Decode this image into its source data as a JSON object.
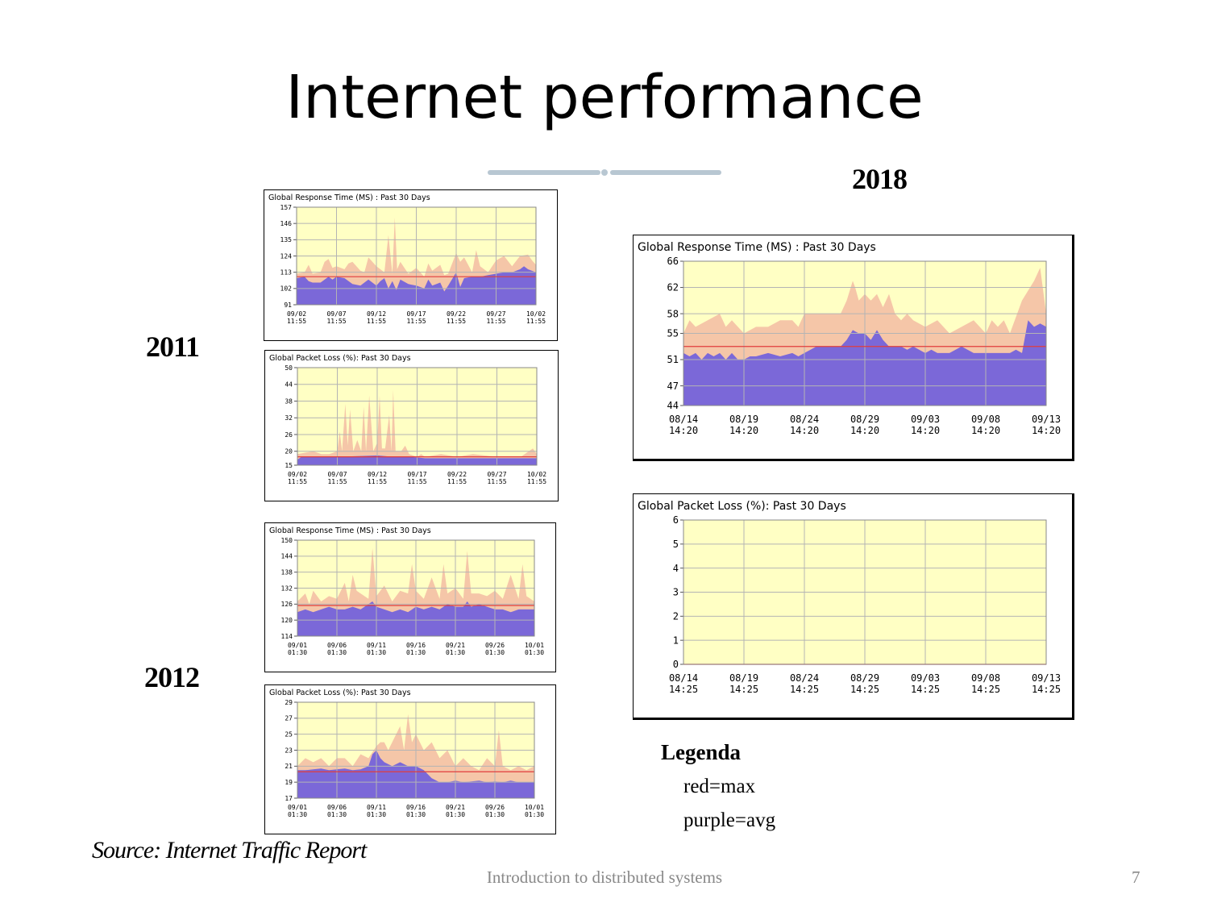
{
  "title": "Internet performance",
  "years": {
    "y2011": "2011",
    "y2012": "2012",
    "y2018": "2018"
  },
  "legend": {
    "title": "Legenda",
    "items": [
      "red=max",
      "purple=avg"
    ]
  },
  "source": "Source: Internet Traffic Report",
  "footer": {
    "text": "Introduction to distributed systems",
    "page": "7"
  },
  "colors": {
    "plot_bg": "#ffffc4",
    "max_fill": "#f5c6a8",
    "avg_fill": "#7b68d8",
    "line": "#e03c3c",
    "grid": "#b4b4b4"
  },
  "chart_data": [
    {
      "id": "rt2011",
      "type": "area",
      "title": "Global Response Time (MS) : Past 30 Days",
      "yticks": [
        91,
        102,
        113,
        124,
        135,
        146,
        157
      ],
      "ylim": [
        91,
        157
      ],
      "xticks": [
        [
          "09/02",
          "11:55"
        ],
        [
          "09/07",
          "11:55"
        ],
        [
          "09/12",
          "11:55"
        ],
        [
          "09/17",
          "11:55"
        ],
        [
          "09/22",
          "11:55"
        ],
        [
          "09/27",
          "11:55"
        ],
        [
          "10/02",
          "11:55"
        ]
      ],
      "xrange": [
        0,
        30
      ],
      "ref_line": 110,
      "series": [
        {
          "role": "max",
          "x": [
            0,
            1,
            1.5,
            2,
            3,
            3.5,
            4,
            4.5,
            5,
            6,
            6.5,
            7,
            8,
            8.5,
            9,
            10,
            11,
            11.5,
            12,
            12.3,
            12.6,
            13,
            14,
            15,
            16,
            16.5,
            17,
            18,
            18.5,
            19,
            20,
            20.5,
            21,
            22,
            22.5,
            23,
            24,
            25,
            26,
            27,
            28,
            29,
            29.5,
            30
          ],
          "values": [
            112,
            113,
            118,
            112,
            113,
            120,
            122,
            116,
            117,
            115,
            119,
            120,
            114,
            113,
            123,
            117,
            113,
            138,
            112,
            150,
            115,
            120,
            112,
            116,
            110,
            119,
            114,
            118,
            111,
            112,
            126,
            120,
            123,
            113,
            128,
            117,
            113,
            121,
            124,
            117,
            124,
            125,
            121,
            118
          ]
        },
        {
          "role": "avg",
          "x": [
            0,
            1,
            1.5,
            2,
            3,
            4,
            4.5,
            5,
            6,
            7,
            8,
            8.5,
            9,
            10,
            10.5,
            11,
            11.5,
            12,
            12.5,
            13,
            14,
            15,
            16,
            16.5,
            17,
            18,
            18.5,
            19,
            20,
            20.5,
            21,
            22,
            23,
            24,
            25,
            26,
            27,
            28,
            28.5,
            29,
            30
          ],
          "values": [
            109,
            110,
            107,
            106,
            106,
            110,
            108,
            110,
            109,
            105,
            104,
            106,
            108,
            104,
            107,
            109,
            102,
            107,
            101,
            108,
            105,
            104,
            102,
            108,
            104,
            106,
            100,
            104,
            113,
            103,
            109,
            110,
            110,
            111,
            112,
            113,
            113,
            115,
            117,
            115,
            113
          ]
        }
      ]
    },
    {
      "id": "pl2011",
      "type": "area",
      "title": "Global Packet Loss (%): Past 30 Days",
      "yticks": [
        15,
        20,
        26,
        32,
        38,
        44,
        50
      ],
      "ylim": [
        15,
        50
      ],
      "xticks": [
        [
          "09/02",
          "11:55"
        ],
        [
          "09/07",
          "11:55"
        ],
        [
          "09/12",
          "11:55"
        ],
        [
          "09/17",
          "11:55"
        ],
        [
          "09/22",
          "11:55"
        ],
        [
          "09/27",
          "11:55"
        ],
        [
          "10/02",
          "11:55"
        ]
      ],
      "xrange": [
        0,
        30
      ],
      "ref_line": 18,
      "series": [
        {
          "role": "max",
          "x": [
            0,
            2,
            3,
            4,
            5,
            5.3,
            5.6,
            6,
            6.3,
            6.6,
            7,
            7.5,
            8,
            8.3,
            8.6,
            9,
            9.5,
            10,
            10.3,
            10.6,
            11,
            11.5,
            11.8,
            12,
            12.3,
            13,
            13.5,
            14,
            15,
            15.5,
            16,
            18,
            20,
            22,
            25,
            28,
            29.5,
            30
          ],
          "values": [
            19,
            20,
            19,
            19,
            20,
            27,
            20,
            37,
            22,
            35,
            20,
            24,
            20,
            36,
            20,
            40,
            20,
            23,
            40,
            21,
            21,
            33,
            20,
            42,
            20,
            20,
            22,
            19,
            18,
            19,
            18,
            19,
            18,
            19,
            18,
            18,
            21,
            19
          ]
        },
        {
          "role": "avg",
          "x": [
            0,
            0.5,
            5,
            10,
            12,
            14,
            16,
            20,
            25,
            30
          ],
          "values": [
            17,
            18,
            18,
            18.5,
            18,
            18,
            17.5,
            17.5,
            17.5,
            17.5
          ]
        }
      ]
    },
    {
      "id": "rt2012",
      "type": "area",
      "title": "Global Response Time (MS) : Past 30 Days",
      "yticks": [
        114,
        120,
        126,
        132,
        138,
        144,
        150
      ],
      "ylim": [
        114,
        150
      ],
      "xticks": [
        [
          "09/01",
          "01:30"
        ],
        [
          "09/06",
          "01:30"
        ],
        [
          "09/11",
          "01:30"
        ],
        [
          "09/16",
          "01:30"
        ],
        [
          "09/21",
          "01:30"
        ],
        [
          "09/26",
          "01:30"
        ],
        [
          "10/01",
          "01:30"
        ]
      ],
      "xrange": [
        0,
        30
      ],
      "ref_line": 125.5,
      "series": [
        {
          "role": "max",
          "x": [
            0,
            1,
            1.5,
            2,
            3,
            4,
            5,
            6,
            6.5,
            7,
            7.5,
            8,
            9,
            9.5,
            10,
            11,
            12,
            13,
            14,
            14.5,
            15,
            16,
            17,
            18,
            18.5,
            19,
            20,
            21,
            21.5,
            22,
            23,
            24,
            25,
            26,
            27,
            28,
            28.5,
            29,
            30
          ],
          "values": [
            127,
            130,
            126,
            131,
            127,
            129,
            128,
            134,
            127,
            137,
            131,
            130,
            128,
            147,
            129,
            133,
            127,
            131,
            130,
            141,
            131,
            128,
            136,
            128,
            141,
            130,
            132,
            128,
            146,
            130,
            130,
            129,
            131,
            128,
            137,
            128,
            141,
            129,
            127
          ]
        },
        {
          "role": "avg",
          "x": [
            0,
            1,
            2,
            3,
            4,
            5,
            6,
            7,
            8,
            9,
            9.5,
            10,
            11,
            12,
            13,
            14,
            15,
            16,
            17,
            18,
            19,
            20,
            21,
            21.5,
            22,
            23,
            24,
            25,
            26,
            27,
            28,
            29,
            30
          ],
          "values": [
            123,
            124,
            123,
            124,
            125,
            124,
            124,
            125,
            124,
            126,
            127,
            125,
            124,
            123,
            124,
            123,
            125,
            124,
            125,
            124,
            126,
            125,
            125,
            127,
            125,
            126,
            125,
            124,
            124,
            123,
            124,
            124,
            124
          ]
        }
      ]
    },
    {
      "id": "pl2012",
      "type": "area",
      "title": "Global Packet Loss (%): Past 30 Days",
      "yticks": [
        17,
        19,
        21,
        23,
        25,
        27,
        29
      ],
      "ylim": [
        17,
        29
      ],
      "xticks": [
        [
          "09/01",
          "01:30"
        ],
        [
          "09/06",
          "01:30"
        ],
        [
          "09/11",
          "01:30"
        ],
        [
          "09/16",
          "01:30"
        ],
        [
          "09/21",
          "01:30"
        ],
        [
          "09/26",
          "01:30"
        ],
        [
          "10/01",
          "01:30"
        ]
      ],
      "xrange": [
        0,
        30
      ],
      "ref_line": 20.3,
      "series": [
        {
          "role": "max",
          "x": [
            0,
            1,
            2,
            3,
            4,
            5,
            6,
            7,
            8,
            9,
            10,
            10.5,
            11,
            11.5,
            12,
            13,
            13.5,
            14,
            14.5,
            15,
            16,
            17,
            18,
            19,
            20,
            21,
            22,
            23,
            24,
            25,
            25.5,
            26,
            27,
            28,
            29,
            30
          ],
          "values": [
            21,
            22,
            21.5,
            22,
            21,
            22,
            22,
            21,
            22.5,
            22,
            23.5,
            24,
            24,
            23,
            24,
            26,
            23,
            27.5,
            24,
            25,
            23,
            24,
            22,
            23,
            21,
            22,
            21,
            20.5,
            22,
            21,
            25.5,
            21,
            20.5,
            21,
            20.5,
            21
          ]
        },
        {
          "role": "avg",
          "x": [
            0,
            1,
            2,
            3,
            4,
            5,
            6,
            7,
            8,
            9,
            9.5,
            10,
            10.5,
            11,
            12,
            13,
            14,
            15,
            16,
            17,
            18,
            19,
            20,
            21,
            22,
            23,
            24,
            25,
            26,
            27,
            28,
            29,
            30
          ],
          "values": [
            20.5,
            20.5,
            20.6,
            20.7,
            20.5,
            20.6,
            20.7,
            20.5,
            20.6,
            21,
            22.5,
            23,
            22,
            21.5,
            21,
            21.5,
            21,
            21,
            20.5,
            19.5,
            19,
            19,
            19.2,
            19,
            19.1,
            19.2,
            19,
            19.1,
            19,
            19.2,
            19,
            19,
            19
          ]
        }
      ]
    },
    {
      "id": "rt2018",
      "type": "area",
      "title": "Global Response Time (MS) : Past 30 Days",
      "yticks": [
        44,
        47,
        51,
        55,
        58,
        62,
        66
      ],
      "ylim": [
        44,
        66
      ],
      "xticks": [
        [
          "08/14",
          "14:20"
        ],
        [
          "08/19",
          "14:20"
        ],
        [
          "08/24",
          "14:20"
        ],
        [
          "08/29",
          "14:20"
        ],
        [
          "09/03",
          "14:20"
        ],
        [
          "09/08",
          "14:20"
        ],
        [
          "09/13",
          "14:20"
        ]
      ],
      "xrange": [
        0,
        30
      ],
      "ref_line": 53,
      "series": [
        {
          "role": "max",
          "x": [
            0,
            0.5,
            1,
            2,
            3,
            3.5,
            4,
            5,
            6,
            7,
            8,
            9,
            9.5,
            10,
            11,
            12,
            13,
            13.5,
            14,
            14.2,
            14.5,
            15,
            15.5,
            16,
            16.5,
            17,
            17.5,
            18,
            18.5,
            19,
            20,
            21,
            22,
            23,
            24,
            25,
            25.5,
            26,
            26.5,
            27,
            28,
            29,
            29.5,
            30
          ],
          "values": [
            55,
            57,
            56,
            57,
            58,
            56,
            57,
            55,
            56,
            56,
            57,
            57,
            56,
            58,
            58,
            58,
            58,
            60,
            63,
            62,
            60,
            61,
            60,
            61,
            59,
            61,
            58,
            57,
            58,
            57,
            56,
            57,
            55,
            56,
            57,
            55,
            57,
            56,
            57,
            55,
            60,
            63,
            65,
            58
          ]
        },
        {
          "role": "avg",
          "x": [
            0,
            0.5,
            1,
            1.5,
            2,
            2.5,
            3,
            3.5,
            4,
            4.5,
            5,
            5.5,
            6,
            7,
            8,
            9,
            9.5,
            10,
            11,
            12,
            13,
            13.5,
            14,
            14.5,
            15,
            15.5,
            16,
            16.5,
            17,
            17.5,
            18,
            18.5,
            19,
            20,
            20.5,
            21,
            22,
            23,
            24,
            25,
            26,
            27,
            27.5,
            28,
            28.5,
            29,
            29.5,
            30
          ],
          "values": [
            52,
            51.5,
            52,
            51,
            52,
            51.5,
            52,
            51,
            52,
            51,
            51,
            51.5,
            51.5,
            52,
            51.5,
            52,
            51.5,
            52,
            53,
            53,
            53,
            54,
            55.5,
            55,
            55,
            54,
            55.5,
            54,
            53,
            53,
            53,
            52.5,
            53,
            52,
            52.5,
            52,
            52,
            53,
            52,
            52,
            52,
            52,
            52.5,
            52,
            57,
            56,
            56.5,
            56
          ]
        }
      ]
    },
    {
      "id": "pl2018",
      "type": "area",
      "title": "Global Packet Loss (%): Past 30 Days",
      "yticks": [
        0,
        1,
        2,
        3,
        4,
        5,
        6
      ],
      "ylim": [
        0,
        6
      ],
      "xticks": [
        [
          "08/14",
          "14:25"
        ],
        [
          "08/19",
          "14:25"
        ],
        [
          "08/24",
          "14:25"
        ],
        [
          "08/29",
          "14:25"
        ],
        [
          "09/03",
          "14:25"
        ],
        [
          "09/08",
          "14:25"
        ],
        [
          "09/13",
          "14:25"
        ]
      ],
      "xrange": [
        0,
        30
      ],
      "ref_line": 0,
      "series": [
        {
          "role": "max",
          "x": [
            0,
            30
          ],
          "values": [
            0,
            0
          ]
        },
        {
          "role": "avg",
          "x": [
            0,
            30
          ],
          "values": [
            0,
            0
          ]
        }
      ]
    }
  ]
}
